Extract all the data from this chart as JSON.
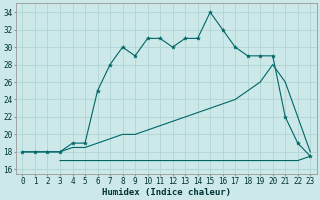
{
  "xlabel": "Humidex (Indice chaleur)",
  "background_color": "#cce8e8",
  "grid_color": "#b0d4d4",
  "line_color": "#006666",
  "xlim": [
    -0.5,
    23.5
  ],
  "ylim": [
    15.5,
    35.0
  ],
  "xticks": [
    0,
    1,
    2,
    3,
    4,
    5,
    6,
    7,
    8,
    9,
    10,
    11,
    12,
    13,
    14,
    15,
    16,
    17,
    18,
    19,
    20,
    21,
    22,
    23
  ],
  "yticks": [
    16,
    18,
    20,
    22,
    24,
    26,
    28,
    30,
    32,
    34
  ],
  "line1_x": [
    0,
    1,
    2,
    3,
    4,
    5,
    6,
    7,
    8,
    9,
    10,
    11,
    12,
    13,
    14,
    15,
    16,
    17,
    18,
    19,
    20,
    21,
    22,
    23
  ],
  "line1_y": [
    18,
    18,
    18,
    18,
    19,
    19,
    25,
    28,
    30,
    29,
    31,
    31,
    30,
    31,
    31,
    34,
    32,
    30,
    29,
    29,
    29,
    22,
    19,
    17.5
  ],
  "line2_x": [
    0,
    1,
    2,
    3,
    4,
    5,
    6,
    7,
    8,
    9,
    10,
    11,
    12,
    13,
    14,
    15,
    16,
    17,
    18,
    19,
    20,
    21,
    22,
    23
  ],
  "line2_y": [
    18,
    18,
    18,
    18,
    18.5,
    18.5,
    19,
    19.5,
    20,
    20,
    20.5,
    21,
    21.5,
    22,
    22.5,
    23,
    23.5,
    24,
    25,
    26,
    28,
    26,
    22,
    18
  ],
  "line3_x": [
    3,
    4,
    5,
    6,
    7,
    8,
    9,
    10,
    11,
    12,
    13,
    14,
    15,
    16,
    17,
    18,
    19,
    20,
    21,
    22,
    23
  ],
  "line3_y": [
    17,
    17,
    17,
    17,
    17,
    17,
    17,
    17,
    17,
    17,
    17,
    17,
    17,
    17,
    17,
    17,
    17,
    17,
    17,
    17,
    17.5
  ],
  "tick_fontsize": 5.5,
  "xlabel_fontsize": 6.5
}
